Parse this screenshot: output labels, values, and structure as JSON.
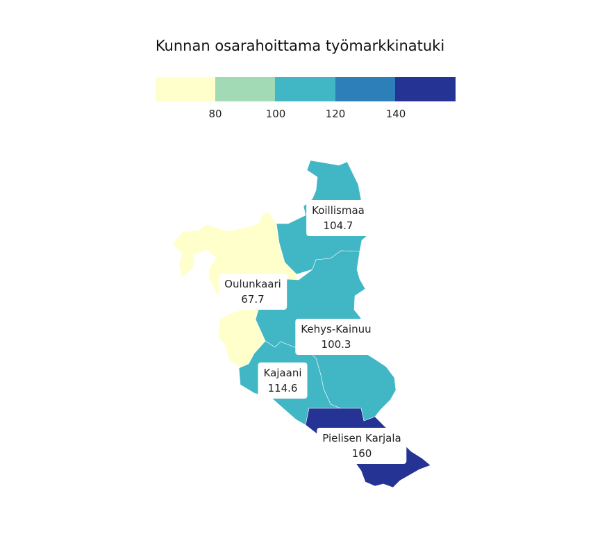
{
  "title": "Kunnan osarahoittama työmarkkinatuki",
  "legend": {
    "bins": [
      {
        "color": "#ffffcc"
      },
      {
        "color": "#a1dab4"
      },
      {
        "color": "#41b6c4"
      },
      {
        "color": "#2c7fb8"
      },
      {
        "color": "#253494"
      }
    ],
    "ticks": [
      "80",
      "100",
      "120",
      "140"
    ]
  },
  "regions": [
    {
      "name": "Koillismaa",
      "value": "104.7",
      "color": "#41b6c4"
    },
    {
      "name": "Oulunkaari",
      "value": "67.7",
      "color": "#ffffcc"
    },
    {
      "name": "Kehys-Kainuu",
      "value": "100.3",
      "color": "#41b6c4"
    },
    {
      "name": "Kajaani",
      "value": "114.6",
      "color": "#41b6c4"
    },
    {
      "name": "Pielisen Karjala",
      "value": "160",
      "color": "#253494"
    }
  ]
}
